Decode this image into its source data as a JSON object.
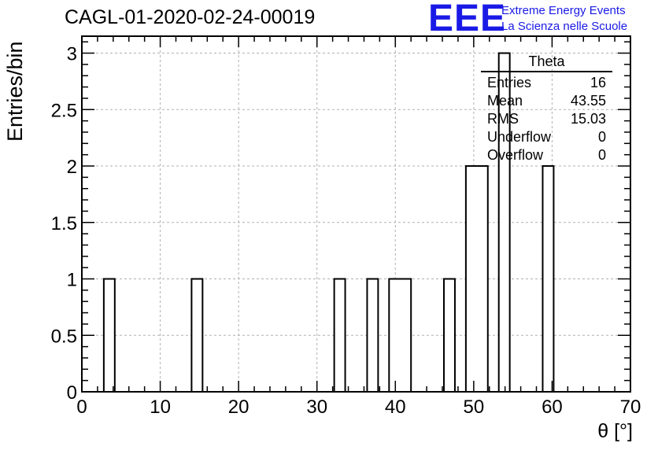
{
  "header": {
    "run_title": "CAGL-01-2020-02-24-00019",
    "logo_big": "EEE",
    "logo_line1": "Extreme Energy Events",
    "logo_line2": "La Scienza nelle Scuole"
  },
  "stats_box": {
    "title": "Theta",
    "rows": [
      {
        "label": "Entries",
        "value": "16"
      },
      {
        "label": "Mean",
        "value": "43.55"
      },
      {
        "label": "RMS",
        "value": "15.03"
      },
      {
        "label": "Underflow",
        "value": "0"
      },
      {
        "label": "Overflow",
        "value": "0"
      }
    ]
  },
  "chart_data": {
    "type": "bar",
    "title": "CAGL-01-2020-02-24-00019",
    "xlabel": "θ [°]",
    "ylabel": "Entries/bin",
    "xlim": [
      0,
      70
    ],
    "ylim": [
      0,
      3.15
    ],
    "bin_width": 1.4,
    "grid": true,
    "x_ticks": [
      0,
      10,
      20,
      30,
      40,
      50,
      60,
      70
    ],
    "y_ticks": [
      0,
      0.5,
      1,
      1.5,
      2,
      2.5,
      3
    ],
    "y_tick_labels": [
      "0",
      "0.5",
      "1",
      "1.5",
      "2",
      "2.5",
      "3"
    ],
    "bins": [
      {
        "x_low": 2.8,
        "x_high": 4.2,
        "count": 1
      },
      {
        "x_low": 14.0,
        "x_high": 15.4,
        "count": 1
      },
      {
        "x_low": 32.2,
        "x_high": 33.6,
        "count": 1
      },
      {
        "x_low": 36.4,
        "x_high": 37.8,
        "count": 1
      },
      {
        "x_low": 39.2,
        "x_high": 42.0,
        "count": 1
      },
      {
        "x_low": 46.2,
        "x_high": 47.6,
        "count": 1
      },
      {
        "x_low": 49.0,
        "x_high": 51.8,
        "count": 2
      },
      {
        "x_low": 53.2,
        "x_high": 54.6,
        "count": 3
      },
      {
        "x_low": 58.8,
        "x_high": 60.2,
        "count": 2
      }
    ]
  }
}
